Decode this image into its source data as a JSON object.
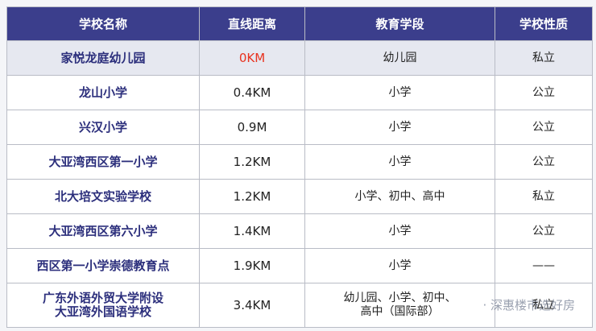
{
  "table": {
    "header": [
      "学校名称",
      "直线距离",
      "教育学段",
      "学校性质"
    ],
    "rows": [
      [
        "家悦龙庭幼儿园",
        "0KM",
        "幼儿园",
        "私立"
      ],
      [
        "龙山小学",
        "0.4KM",
        "小学",
        "公立"
      ],
      [
        "兴汉小学",
        "0.9M",
        "小学",
        "公立"
      ],
      [
        "大亚湾西区第一小学",
        "1.2KM",
        "小学",
        "公立"
      ],
      [
        "北大培文实验学校",
        "1.2KM",
        "小学、初中、高中",
        "私立"
      ],
      [
        "大亚湾西区第六小学",
        "1.4KM",
        "小学",
        "公立"
      ],
      [
        "西区第一小学崇德教育点",
        "1.9KM",
        "小学",
        "——"
      ],
      [
        "广东外语外贸大学附设\n大亚湾外国语学校",
        "3.4KM",
        "幼儿园、小学、初中、\n高中（国际部）",
        "私立"
      ]
    ]
  },
  "watermark": "· 深惠楼市选好房"
}
